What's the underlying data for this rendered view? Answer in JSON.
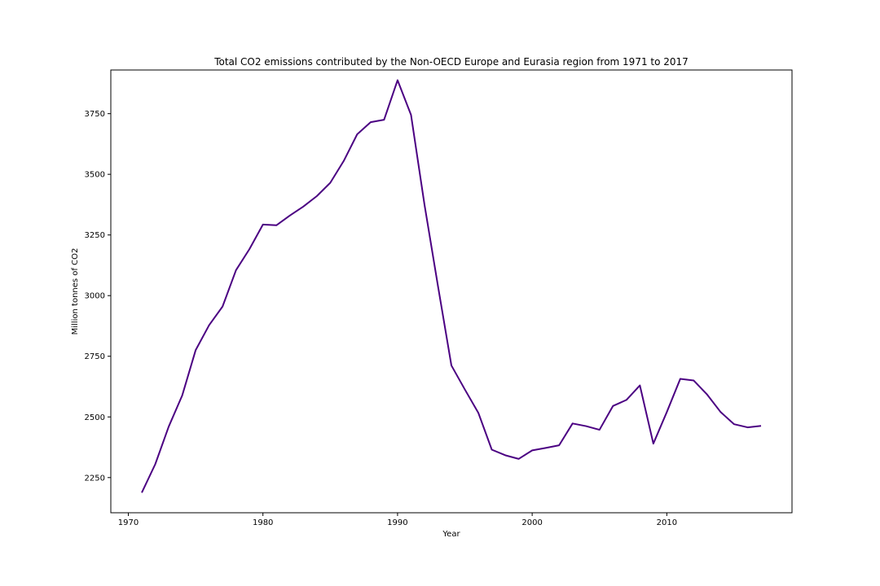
{
  "chart_data": {
    "type": "line",
    "title": "Total CO2 emissions contributed by the Non-OECD Europe and Eurasia region from 1971 to 2017",
    "xlabel": "Year",
    "ylabel": "Million tonnes of CO2",
    "xlim": [
      1968.7,
      2019.3
    ],
    "ylim": [
      2105,
      3930
    ],
    "xticks": [
      1970,
      1980,
      1990,
      2000,
      2010
    ],
    "yticks": [
      2250,
      2500,
      2750,
      3000,
      3250,
      3500,
      3750
    ],
    "grid": false,
    "line_color": "#4b0082",
    "series": [
      {
        "x": [
          1971,
          1972,
          1973,
          1974,
          1975,
          1976,
          1977,
          1978,
          1979,
          1980,
          1981,
          1982,
          1983,
          1984,
          1985,
          1986,
          1987,
          1988,
          1989,
          1990,
          1991,
          1992,
          1993,
          1994,
          1995,
          1996,
          1997,
          1998,
          1999,
          2000,
          2001,
          2002,
          2003,
          2004,
          2005,
          2006,
          2007,
          2008,
          2009,
          2010,
          2011,
          2012,
          2013,
          2014,
          2015,
          2016,
          2017
        ],
        "y": [
          2188,
          2305,
          2460,
          2588,
          2775,
          2878,
          2955,
          3105,
          3192,
          3293,
          3290,
          3330,
          3367,
          3410,
          3465,
          3555,
          3665,
          3715,
          3725,
          3888,
          3745,
          3375,
          3040,
          2712,
          2613,
          2517,
          2365,
          2342,
          2327,
          2362,
          2372,
          2383,
          2473,
          2462,
          2447,
          2545,
          2570,
          2630,
          2390,
          2520,
          2657,
          2650,
          2592,
          2520,
          2470,
          2457,
          2463
        ]
      }
    ]
  }
}
